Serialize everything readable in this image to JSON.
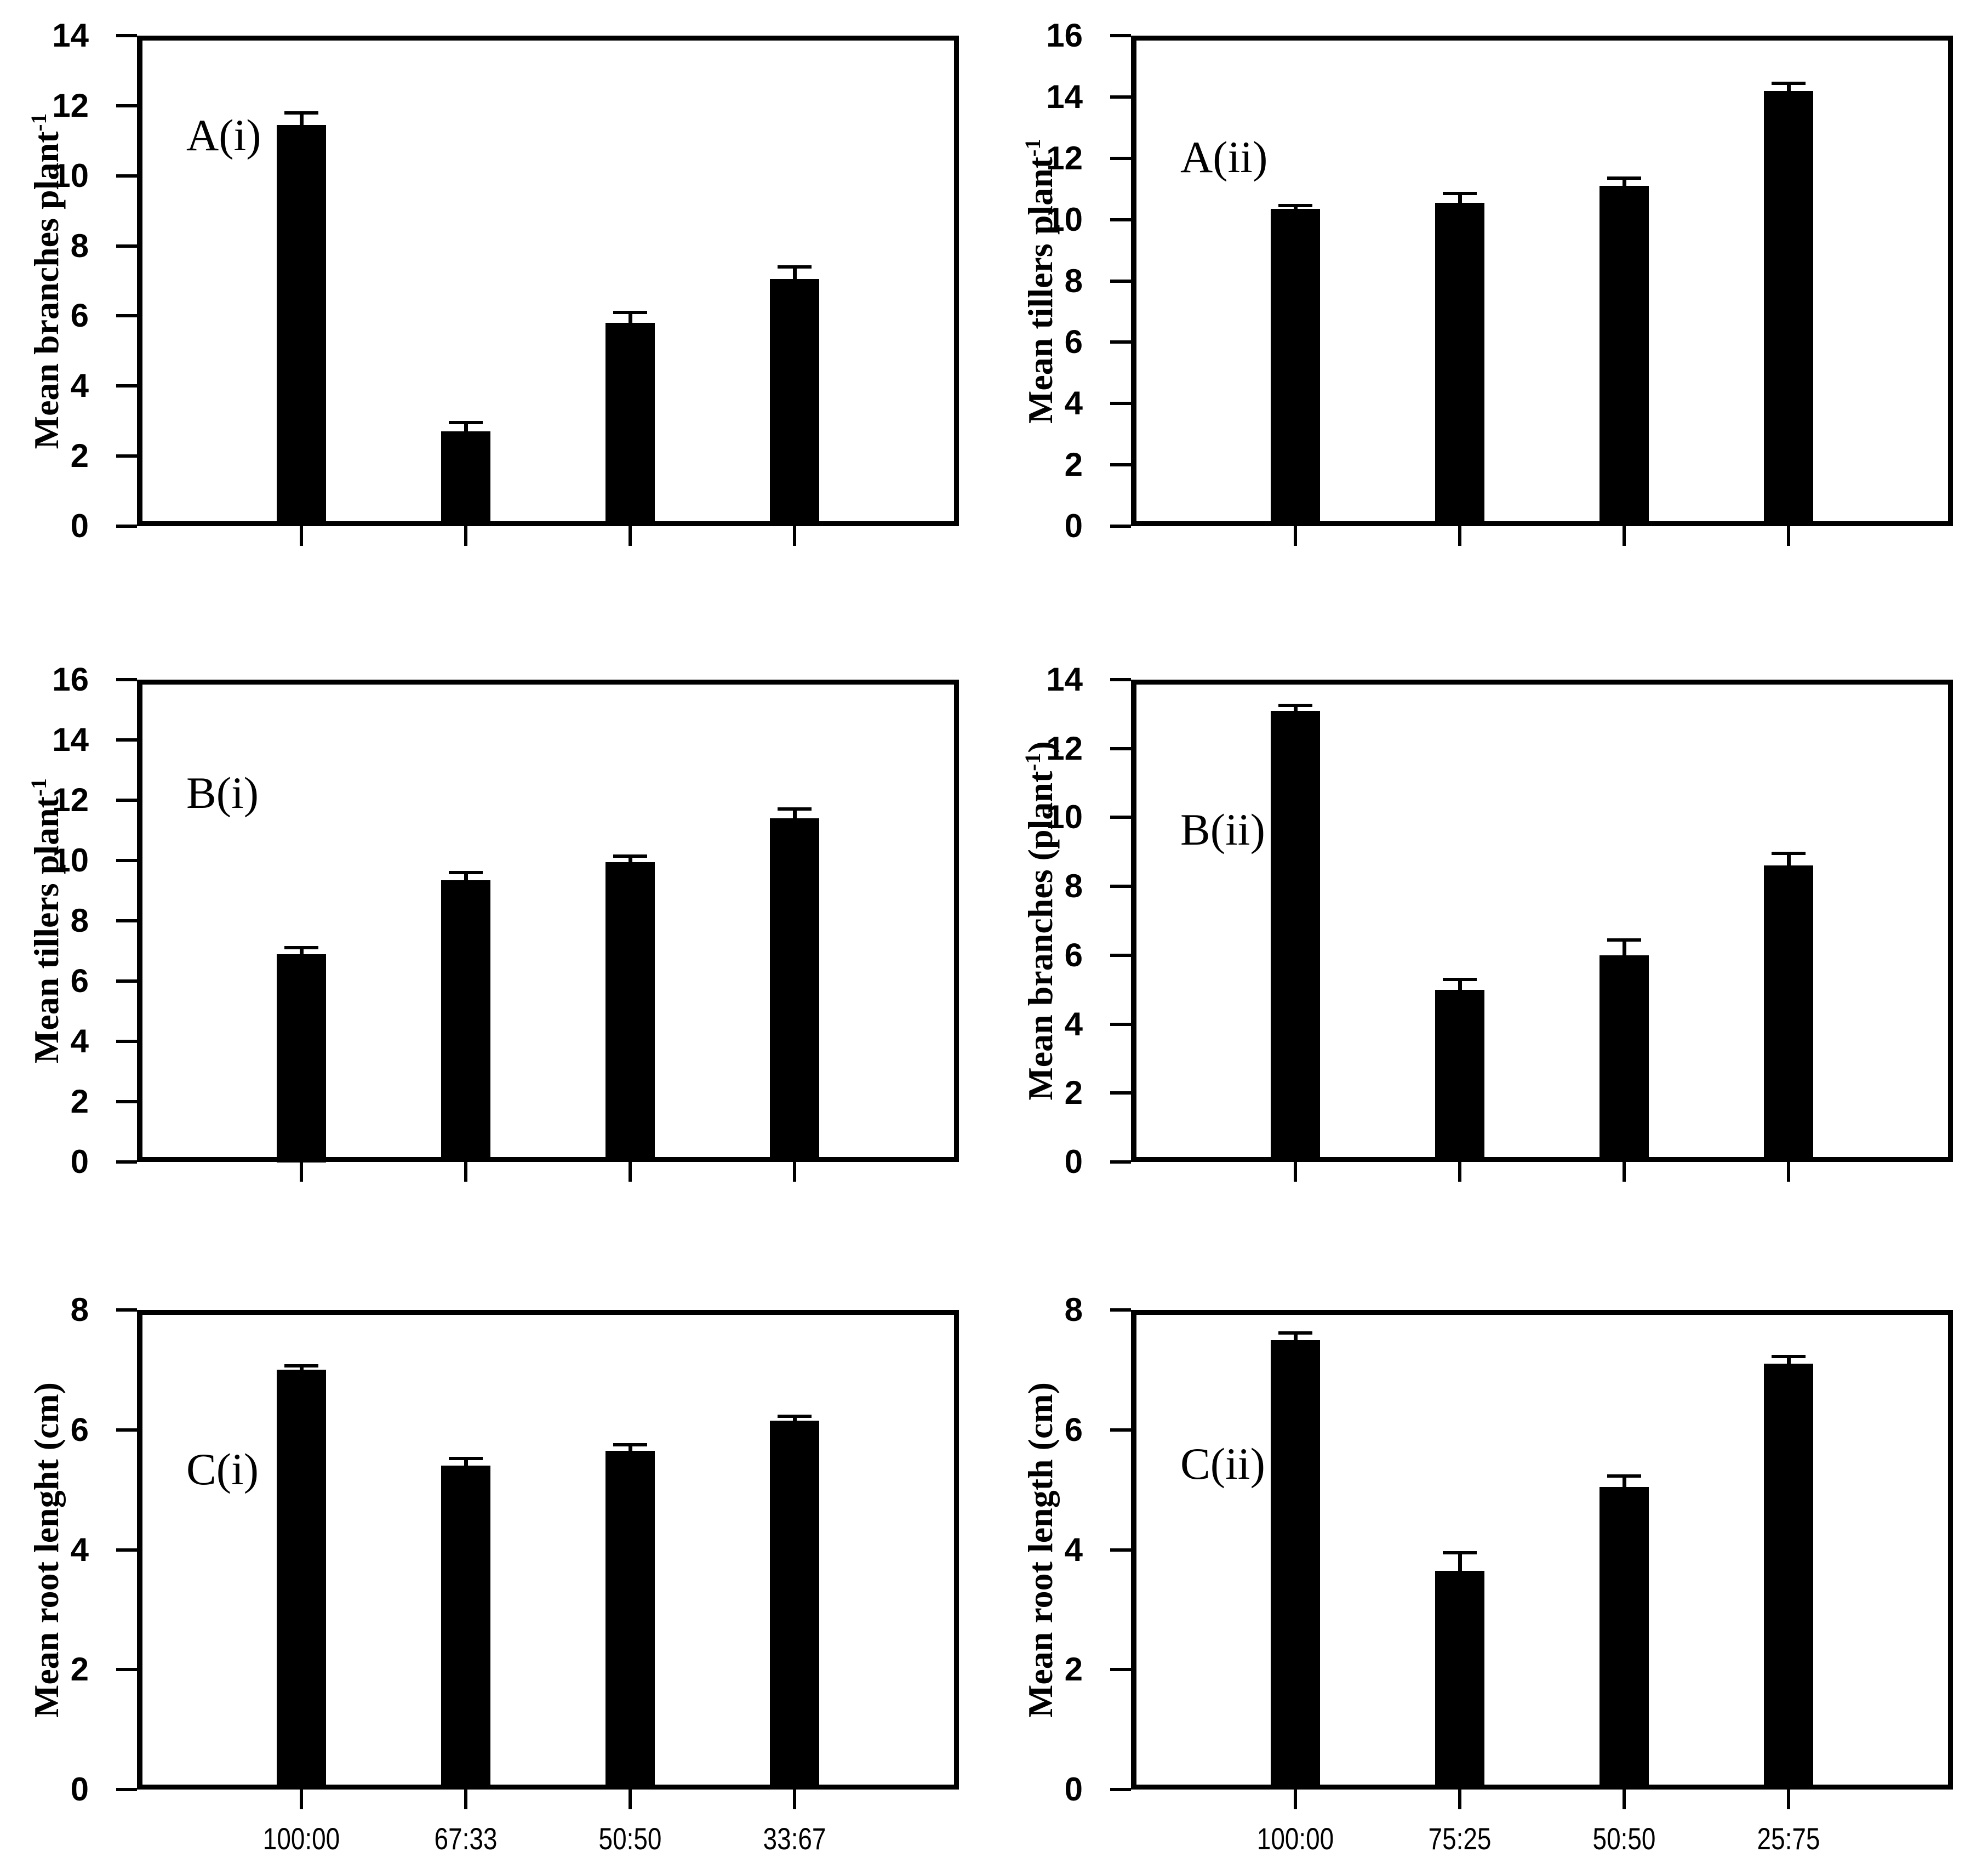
{
  "figure": {
    "background_color": "#ffffff",
    "bar_color": "#000000",
    "axis_color": "#000000"
  },
  "chart_data": [
    {
      "type": "bar",
      "panel_label": "A(i)",
      "ylabel": "Mean branches plant^-1",
      "ylabel_parts": {
        "pre": "Mean branches plant",
        "sup": "-1",
        "post": ""
      },
      "categories": [
        "100:00",
        "67:33",
        "50:50",
        "33:67"
      ],
      "values": [
        11.45,
        2.7,
        5.8,
        7.05
      ],
      "errors": [
        0.35,
        0.25,
        0.3,
        0.35
      ],
      "ylim": [
        0,
        14
      ],
      "yticks": [
        0,
        2,
        4,
        6,
        8,
        10,
        12,
        14
      ],
      "xticklabels_visible": false,
      "legend": "none",
      "grid": "off"
    },
    {
      "type": "bar",
      "panel_label": "A(ii)",
      "ylabel": "Mean tillers plant^-1",
      "ylabel_parts": {
        "pre": "Mean tillers plant",
        "sup": "-1",
        "post": ""
      },
      "categories": [
        "100:00",
        "75:25",
        "50:50",
        "25:75"
      ],
      "values": [
        10.35,
        10.55,
        11.1,
        14.2
      ],
      "errors": [
        0.1,
        0.3,
        0.25,
        0.25
      ],
      "ylim": [
        0,
        16
      ],
      "yticks": [
        0,
        2,
        4,
        6,
        8,
        10,
        12,
        14,
        16
      ],
      "xticklabels_visible": false,
      "legend": "none",
      "grid": "off"
    },
    {
      "type": "bar",
      "panel_label": "B(i)",
      "ylabel": "Mean tillers plant^-1",
      "ylabel_parts": {
        "pre": "Mean tillers plant",
        "sup": "-1",
        "post": ""
      },
      "categories": [
        "100:00",
        "67:33",
        "50:50",
        "33:67"
      ],
      "values": [
        6.9,
        9.35,
        9.95,
        11.4
      ],
      "errors": [
        0.2,
        0.25,
        0.2,
        0.3
      ],
      "ylim": [
        0,
        16
      ],
      "yticks": [
        0,
        2,
        4,
        6,
        8,
        10,
        12,
        14,
        16
      ],
      "xticklabels_visible": false,
      "legend": "none",
      "grid": "off"
    },
    {
      "type": "bar",
      "panel_label": "B(ii)",
      "ylabel": "Mean branches (plant^-1)",
      "ylabel_parts": {
        "pre": "Mean branches (plant",
        "sup": "-1",
        "post": ")"
      },
      "categories": [
        "100:00",
        "75:25",
        "50:50",
        "25:75"
      ],
      "values": [
        13.1,
        5.0,
        6.0,
        8.6
      ],
      "errors": [
        0.15,
        0.3,
        0.45,
        0.35
      ],
      "ylim": [
        0,
        14
      ],
      "yticks": [
        0,
        2,
        4,
        6,
        8,
        10,
        12,
        14
      ],
      "xticklabels_visible": false,
      "legend": "none",
      "grid": "off"
    },
    {
      "type": "bar",
      "panel_label": "C(i)",
      "ylabel": "Mean root lenght (cm)",
      "ylabel_parts": {
        "pre": "Mean root lenght (cm)",
        "sup": "",
        "post": ""
      },
      "categories": [
        "100:00",
        "67:33",
        "50:50",
        "33:67"
      ],
      "values": [
        7.0,
        5.4,
        5.65,
        6.15
      ],
      "errors": [
        0.07,
        0.12,
        0.1,
        0.08
      ],
      "ylim": [
        0,
        8
      ],
      "yticks": [
        0,
        2,
        4,
        6,
        8
      ],
      "xticklabels_visible": true,
      "legend": "none",
      "grid": "off"
    },
    {
      "type": "bar",
      "panel_label": "C(ii)",
      "ylabel": "Mean root length (cm)",
      "ylabel_parts": {
        "pre": "Mean root length (cm)",
        "sup": "",
        "post": ""
      },
      "categories": [
        "100:00",
        "75:25",
        "50:50",
        "25:75"
      ],
      "values": [
        7.5,
        3.65,
        5.05,
        7.1
      ],
      "errors": [
        0.12,
        0.3,
        0.18,
        0.12
      ],
      "ylim": [
        0,
        8
      ],
      "yticks": [
        0,
        2,
        4,
        6,
        8
      ],
      "xticklabels_visible": true,
      "legend": "none",
      "grid": "off"
    }
  ]
}
